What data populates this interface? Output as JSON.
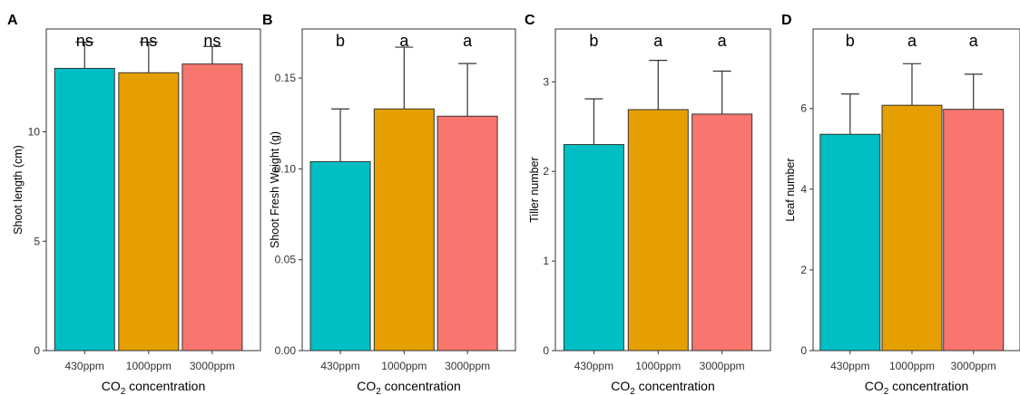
{
  "chart_data": [
    {
      "type": "bar",
      "panel": "A",
      "categories": [
        "430ppm",
        "1000ppm",
        "3000ppm"
      ],
      "values": [
        12.9,
        12.7,
        13.1
      ],
      "errors": [
        1.2,
        1.4,
        0.8
      ],
      "significance": [
        "ns",
        "ns",
        "ns"
      ],
      "ylabel": "Shoot length (cm)",
      "xlabel_main": "CO",
      "xlabel_sub": "2",
      "xlabel_rest": " concentration",
      "ylim": [
        0,
        14.7
      ],
      "yticks": [
        0,
        5,
        10
      ],
      "colors": [
        "#00BFC4",
        "#E69F00",
        "#F8766D"
      ]
    },
    {
      "type": "bar",
      "panel": "B",
      "categories": [
        "430ppm",
        "1000ppm",
        "3000ppm"
      ],
      "values": [
        0.104,
        0.133,
        0.129
      ],
      "errors": [
        0.029,
        0.034,
        0.029
      ],
      "significance": [
        "b",
        "a",
        "a"
      ],
      "ylabel": "Shoot Fresh Weight (g)",
      "xlabel_main": "CO",
      "xlabel_sub": "2",
      "xlabel_rest": " concentration",
      "ylim": [
        0,
        0.177
      ],
      "yticks": [
        0.0,
        0.05,
        0.1,
        0.15
      ],
      "ytick_labels": [
        "0.00",
        "0.05",
        "0.10",
        "0.15"
      ],
      "colors": [
        "#00BFC4",
        "#E69F00",
        "#F8766D"
      ]
    },
    {
      "type": "bar",
      "panel": "C",
      "categories": [
        "430ppm",
        "1000ppm",
        "3000ppm"
      ],
      "values": [
        2.3,
        2.69,
        2.64
      ],
      "errors": [
        0.51,
        0.55,
        0.48
      ],
      "significance": [
        "b",
        "a",
        "a"
      ],
      "ylabel": "Tiller number",
      "xlabel_main": "CO",
      "xlabel_sub": "2",
      "xlabel_rest": " concentration",
      "ylim": [
        0,
        3.59
      ],
      "yticks": [
        0,
        1,
        2,
        3
      ],
      "colors": [
        "#00BFC4",
        "#E69F00",
        "#F8766D"
      ]
    },
    {
      "type": "bar",
      "panel": "D",
      "categories": [
        "430ppm",
        "1000ppm",
        "3000ppm"
      ],
      "values": [
        5.36,
        6.08,
        5.98
      ],
      "errors": [
        1.0,
        1.03,
        0.87
      ],
      "significance": [
        "b",
        "a",
        "a"
      ],
      "ylabel": "Leaf number",
      "xlabel_main": "CO",
      "xlabel_sub": "2",
      "xlabel_rest": " concentration",
      "ylim": [
        0,
        7.97
      ],
      "yticks": [
        0,
        2,
        4,
        6
      ],
      "colors": [
        "#00BFC4",
        "#E69F00",
        "#F8766D"
      ]
    }
  ]
}
